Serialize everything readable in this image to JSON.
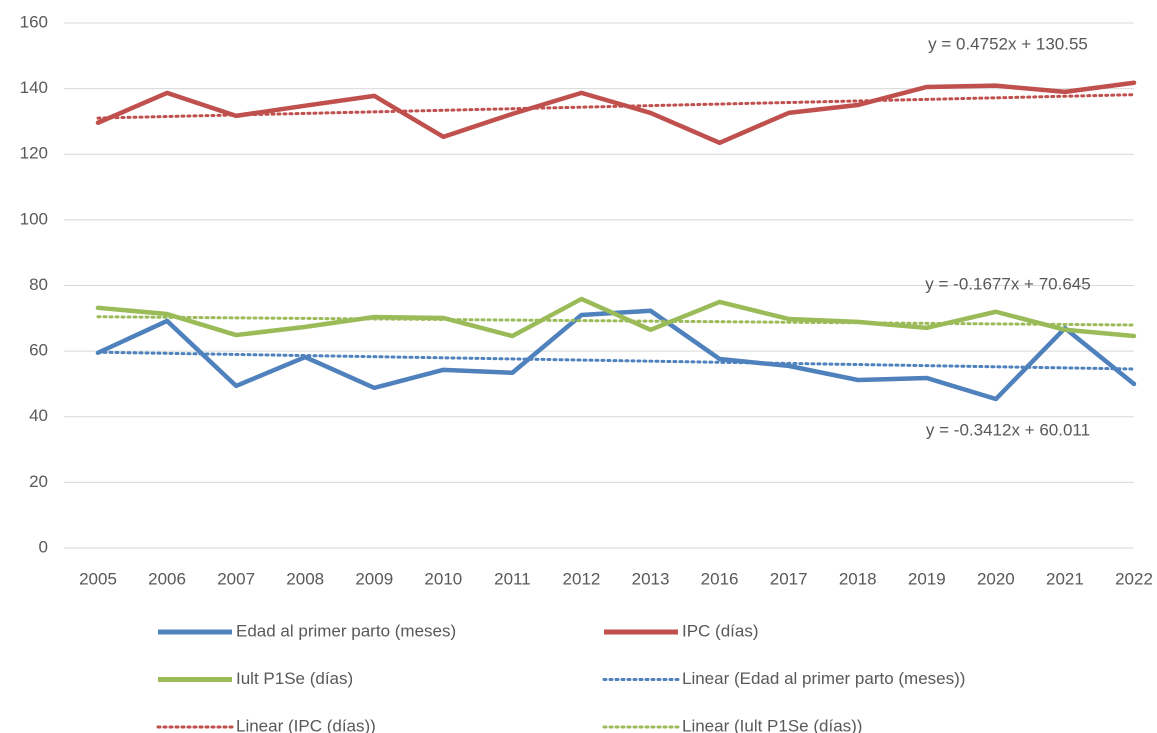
{
  "chart_data": {
    "type": "line",
    "categories": [
      "2005",
      "2006",
      "2007",
      "2008",
      "2009",
      "2010",
      "2011",
      "2012",
      "2013",
      "2016",
      "2017",
      "2018",
      "2019",
      "2020",
      "2021",
      "2022"
    ],
    "series": [
      {
        "name": "Edad al primer parto (meses)",
        "color": "#4f81bd",
        "values": [
          59.5,
          69.2,
          49.4,
          58.2,
          48.8,
          54.3,
          53.4,
          71,
          72.3,
          57.6,
          55.5,
          51.2,
          51.8,
          45.4,
          67,
          50
        ]
      },
      {
        "name": "IPC (días)",
        "color": "#c0504d",
        "values": [
          129.6,
          138.7,
          131.7,
          134.8,
          137.8,
          125.3,
          132.3,
          138.7,
          132.6,
          123.5,
          132.6,
          135,
          140.5,
          140.9,
          139,
          141.8
        ]
      },
      {
        "name": "Iult P1Se (días)",
        "color": "#9bbb59",
        "values": [
          73.2,
          71.3,
          64.9,
          67.4,
          70.4,
          70.1,
          64.6,
          75.9,
          66.5,
          75,
          69.8,
          68.9,
          67.1,
          72,
          66.5,
          64.6
        ]
      }
    ],
    "trendlines": [
      {
        "name": "Linear (Edad al primer parto (meses))",
        "color": "#4f81bd",
        "slope": -0.3412,
        "intercept": 60.011,
        "equation": "y = -0.3412x + 60.011"
      },
      {
        "name": "Linear (IPC (días))",
        "color": "#c0504d",
        "slope": 0.4752,
        "intercept": 130.55,
        "equation": "y = 0.4752x + 130.55"
      },
      {
        "name": "Linear (Iult P1Se (días))",
        "color": "#9bbb59",
        "slope": -0.1677,
        "intercept": 70.645,
        "equation": "y = -0.1677x + 70.645"
      }
    ],
    "ylim": [
      0,
      160
    ],
    "yticks": [
      0,
      20,
      40,
      60,
      80,
      100,
      120,
      140,
      160
    ],
    "grid": true
  }
}
